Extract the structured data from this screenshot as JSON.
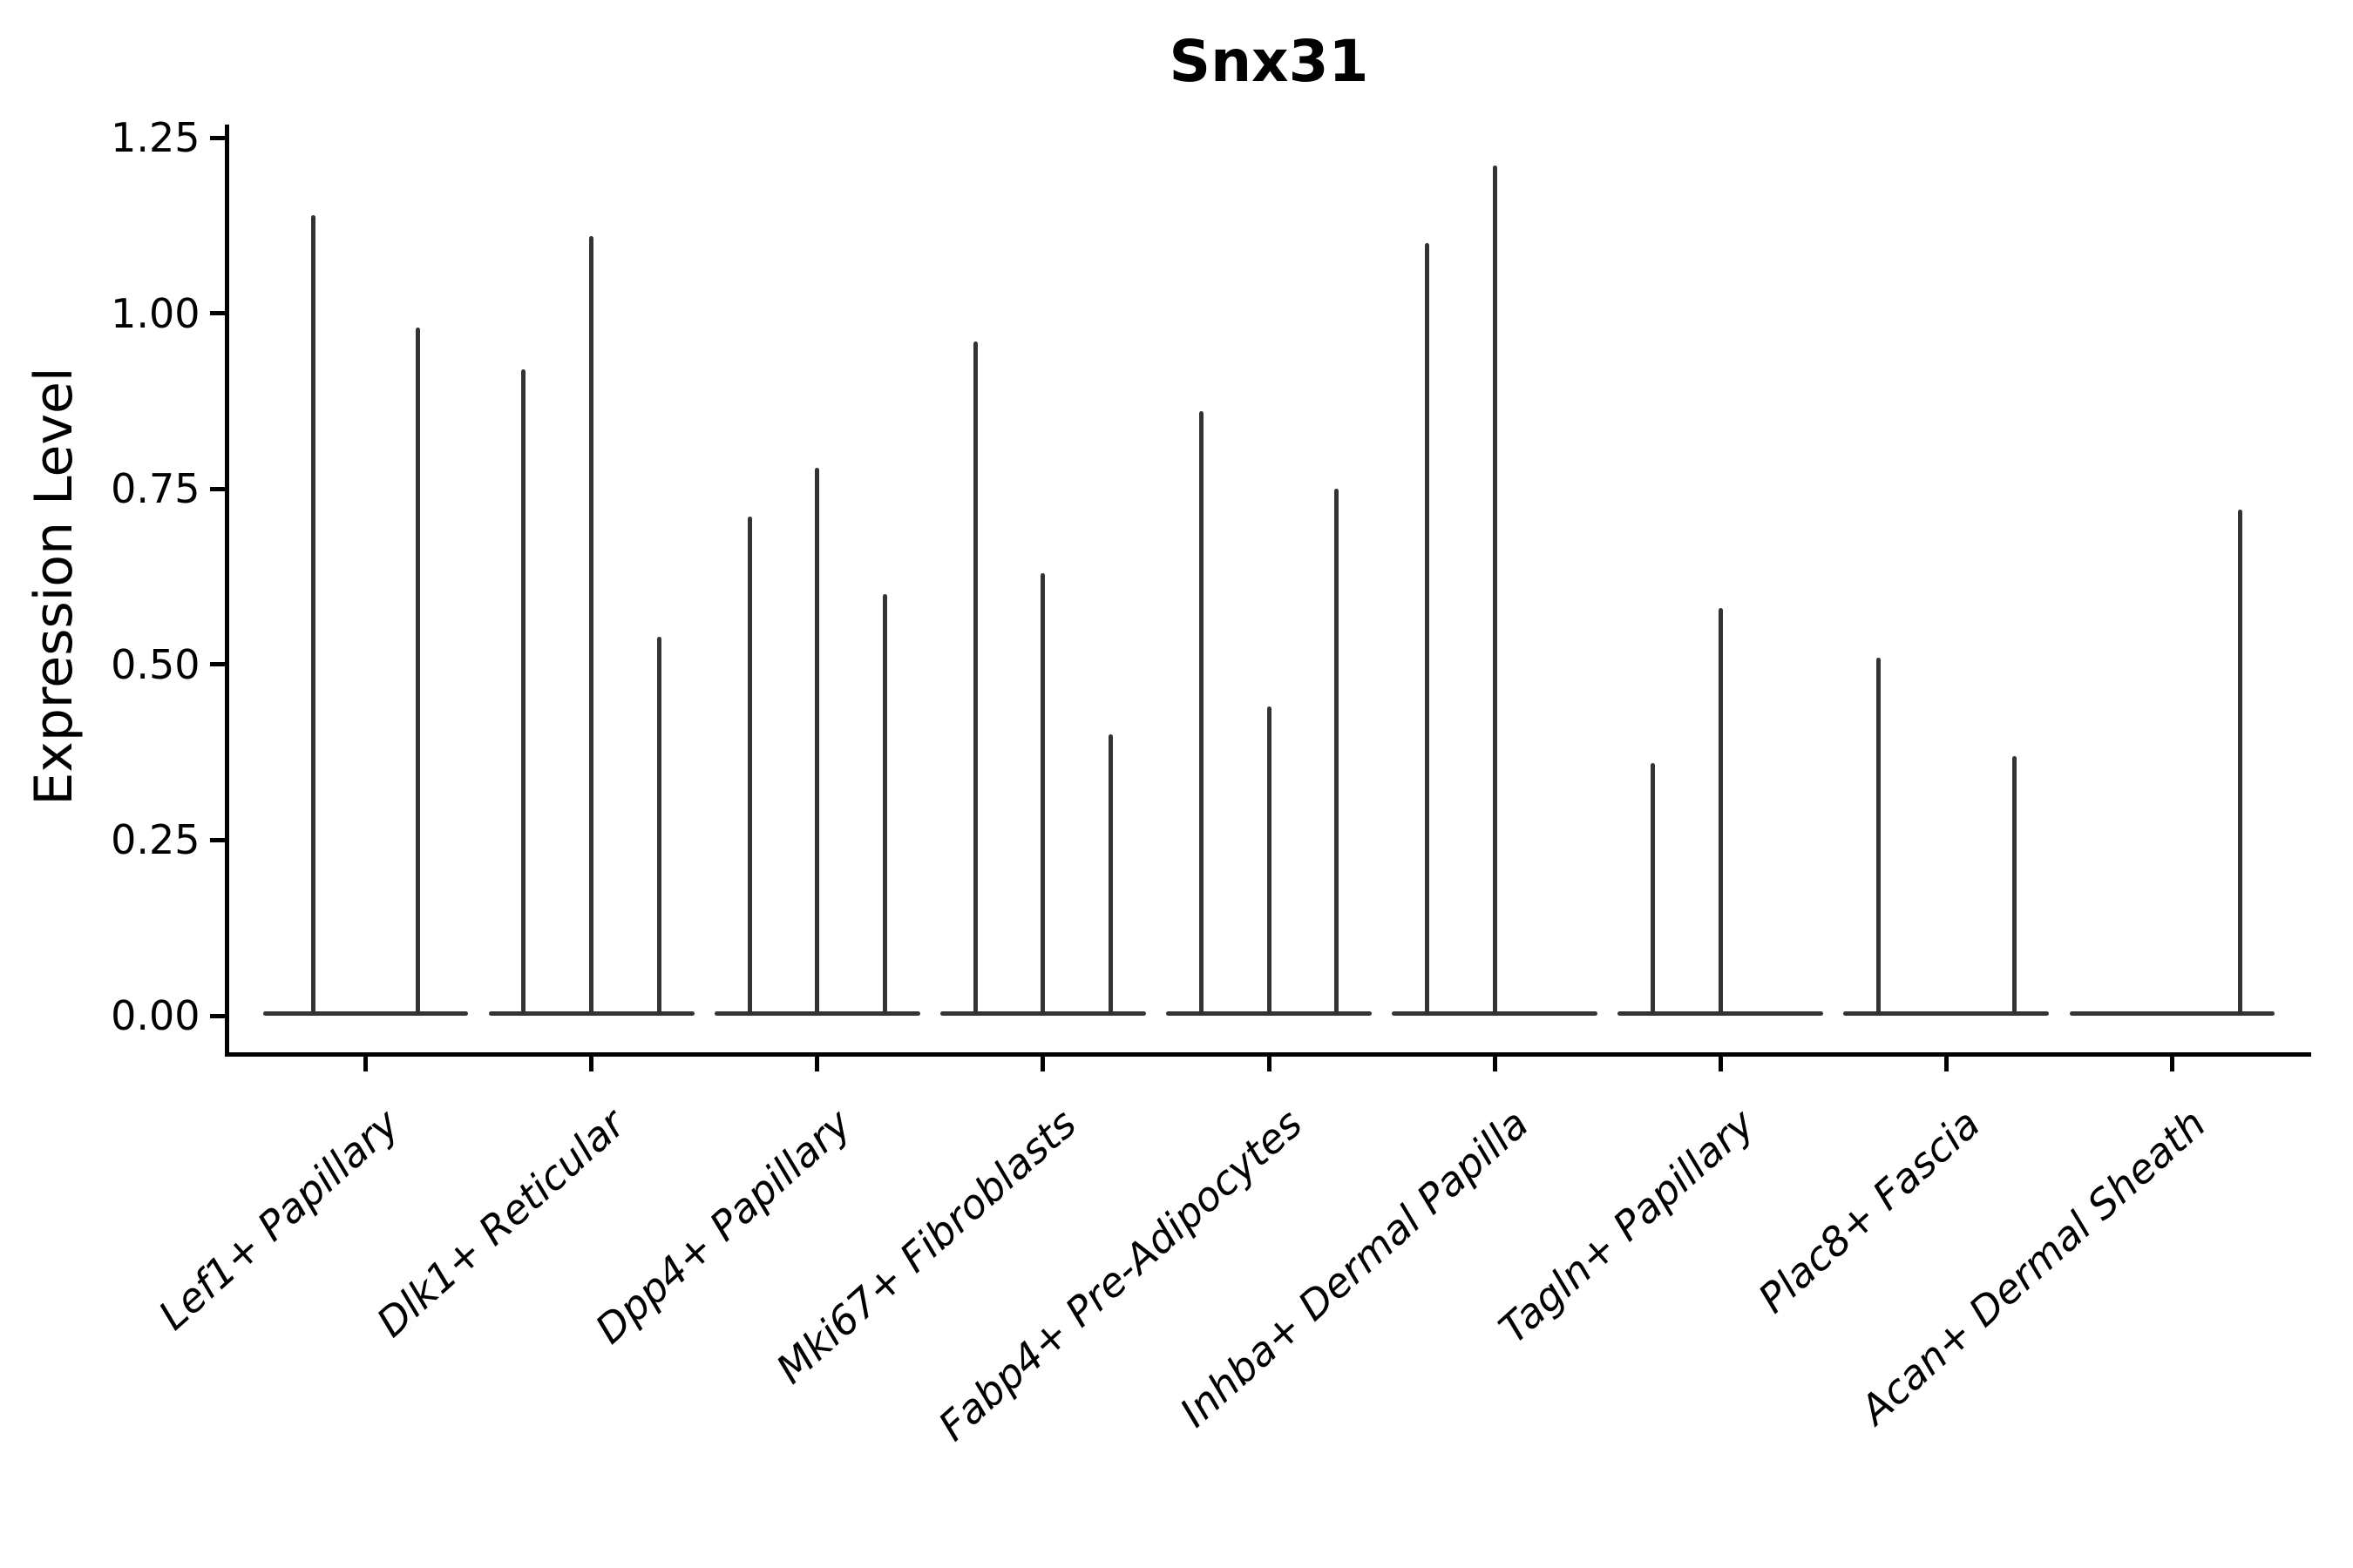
{
  "chart_data": {
    "type": "violin",
    "title": "Snx31",
    "ylabel": "Expression Level",
    "xlabel": "",
    "grid": false,
    "legend": null,
    "ylim": [
      -0.055,
      1.27
    ],
    "yticks": [
      0,
      0.25,
      0.5,
      0.75,
      1.0,
      1.25
    ],
    "ytick_labels": [
      "0.00",
      "0.25",
      "0.50",
      "0.75",
      "1.00",
      "1.25"
    ],
    "xtick_label_rotation_deg": 42,
    "violin_base_halfwidth": 0.455,
    "description": "Single-gene violin plot; in every violin the expression mass is concentrated at 0 (flat wide base) with an extremely thin density spike rising to the peak value.",
    "categories": [
      {
        "label": "Lef1+ Papillary",
        "violins": [
          {
            "offset": -0.23,
            "peak": 1.14
          },
          {
            "offset": 0.23,
            "peak": 0.98
          }
        ]
      },
      {
        "label": "Dlk1+ Reticular",
        "violins": [
          {
            "offset": -0.3,
            "peak": 0.92
          },
          {
            "offset": 0.0,
            "peak": 1.11
          },
          {
            "offset": 0.3,
            "peak": 0.54
          }
        ]
      },
      {
        "label": "Dpp4+ Papillary",
        "violins": [
          {
            "offset": -0.3,
            "peak": 0.71
          },
          {
            "offset": 0.0,
            "peak": 0.78
          },
          {
            "offset": 0.3,
            "peak": 0.6
          }
        ]
      },
      {
        "label": "Mki67+ Fibroblasts",
        "violins": [
          {
            "offset": -0.3,
            "peak": 0.96
          },
          {
            "offset": 0.0,
            "peak": 0.63
          },
          {
            "offset": 0.3,
            "peak": 0.4
          }
        ]
      },
      {
        "label": "Fabp4+ Pre-Adipocytes",
        "violins": [
          {
            "offset": -0.3,
            "peak": 0.86
          },
          {
            "offset": 0.0,
            "peak": 0.44
          },
          {
            "offset": 0.3,
            "peak": 0.75
          }
        ]
      },
      {
        "label": "Inhba+ Dermal Papilla",
        "violins": [
          {
            "offset": -0.3,
            "peak": 1.1
          },
          {
            "offset": 0.0,
            "peak": 1.21
          }
        ]
      },
      {
        "label": "Tagln+ Papillary",
        "violins": [
          {
            "offset": -0.3,
            "peak": 0.36
          },
          {
            "offset": 0.0,
            "peak": 0.58
          }
        ]
      },
      {
        "label": "Plac8+ Fascia",
        "violins": [
          {
            "offset": -0.3,
            "peak": 0.51
          },
          {
            "offset": 0.3,
            "peak": 0.37
          }
        ]
      },
      {
        "label": "Acan+ Dermal Sheath",
        "violins": [
          {
            "offset": 0.3,
            "peak": 0.72
          }
        ]
      }
    ],
    "colors": {
      "violin": "#333333",
      "axis": "#000000",
      "text": "#000000",
      "background": "#ffffff"
    }
  }
}
